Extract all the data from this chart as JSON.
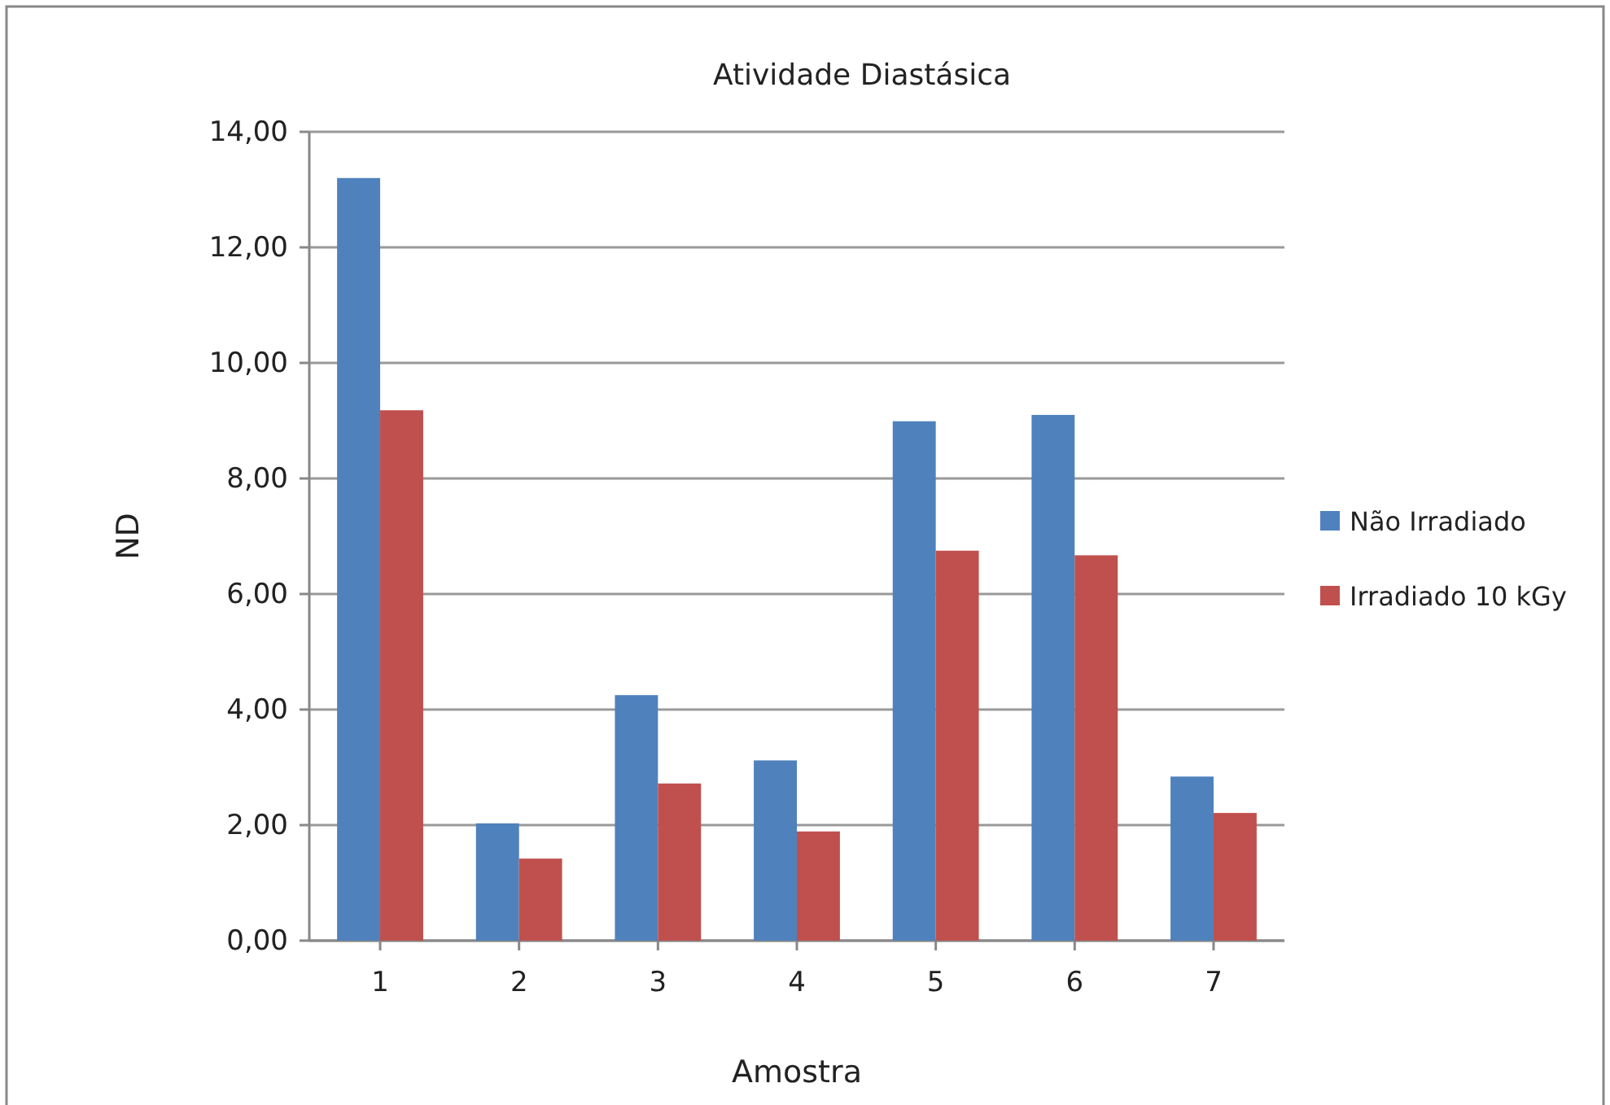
{
  "chart_data": {
    "type": "bar",
    "title": "Atividade Diastásica",
    "xlabel": "Amostra",
    "ylabel": "ND",
    "categories": [
      "1",
      "2",
      "3",
      "4",
      "5",
      "6",
      "7"
    ],
    "series": [
      {
        "name": "Não Irradiado",
        "color": "#4f81bd",
        "values": [
          13.2,
          2.03,
          4.25,
          3.12,
          8.99,
          9.1,
          2.84
        ]
      },
      {
        "name": "Irradiado 10 kGy",
        "color": "#c0504d",
        "values": [
          9.18,
          1.42,
          2.72,
          1.89,
          6.75,
          6.67,
          2.21
        ]
      }
    ],
    "ylim": [
      0,
      14
    ],
    "yticks": [
      {
        "value": 0,
        "label": "0,00"
      },
      {
        "value": 2,
        "label": "2,00"
      },
      {
        "value": 4,
        "label": "4,00"
      },
      {
        "value": 6,
        "label": "6,00"
      },
      {
        "value": 8,
        "label": "8,00"
      },
      {
        "value": 10,
        "label": "10,00"
      },
      {
        "value": 12,
        "label": "12,00"
      },
      {
        "value": 14,
        "label": "14,00"
      }
    ],
    "grid": "y",
    "legend": "right"
  }
}
